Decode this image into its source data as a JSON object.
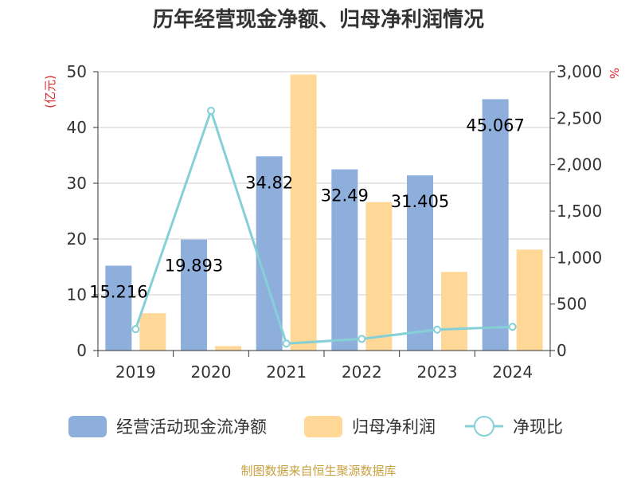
{
  "chart_data": {
    "type": "bar",
    "title": "历年经营现金净额、归母净利润情况",
    "categories": [
      "2019",
      "2020",
      "2021",
      "2022",
      "2023",
      "2024"
    ],
    "y_left": {
      "unit_label": "(亿元)",
      "range": [
        0,
        50
      ],
      "ticks": [
        "0",
        "10",
        "20",
        "30",
        "40",
        "50"
      ]
    },
    "y_right": {
      "unit_label": "%",
      "range": [
        0,
        3000
      ],
      "ticks": [
        "0",
        "500",
        "1,000",
        "1,500",
        "2,000",
        "2,500",
        "3,000"
      ]
    },
    "series": [
      {
        "name": "经营活动现金流净额",
        "type": "bar",
        "axis": "left",
        "color": "#8eaedb",
        "values": [
          15.216,
          19.893,
          34.82,
          32.49,
          31.405,
          45.067
        ],
        "labels": [
          "15.216",
          "19.893",
          "34.82",
          "32.49",
          "31.405",
          "45.067"
        ]
      },
      {
        "name": "归母净利润",
        "type": "bar",
        "axis": "left",
        "color": "#ffd898",
        "values": [
          6.7,
          0.8,
          49.5,
          26.6,
          14.1,
          18.1
        ]
      },
      {
        "name": "净现比",
        "type": "line",
        "axis": "right",
        "color": "#84d0d6",
        "values": [
          230,
          2580,
          75,
          125,
          225,
          255
        ]
      }
    ],
    "grid": true,
    "legend_position": "bottom"
  },
  "source": "制图数据来自恒生聚源数据库"
}
